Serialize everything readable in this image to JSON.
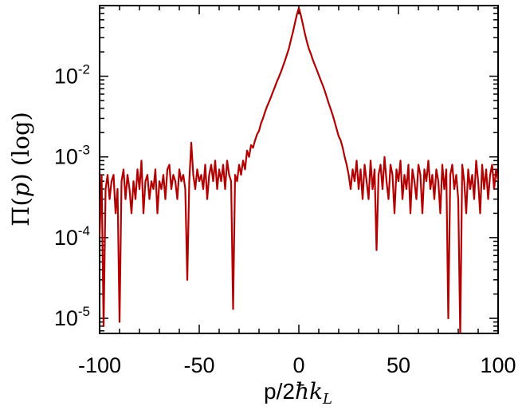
{
  "chart_data": {
    "type": "line",
    "title": "",
    "xlabel": "p/2ħk_L",
    "xlabel_parts": {
      "prefix": "p/2",
      "hbar": "ħ",
      "k": "k",
      "sub": "L"
    },
    "ylabel": "Π(p) (log)",
    "ylabel_parts": {
      "pi": "Π",
      "open": "(",
      "p": "p",
      "close": ")",
      "log": "(log)"
    },
    "xlim": [
      -100,
      100
    ],
    "ylim": [
      6.5e-06,
      0.075
    ],
    "yscale": "log",
    "grid": false,
    "legend": "none",
    "line_color": "#b30000",
    "x_ticks": [
      {
        "value": -100,
        "label": "-100"
      },
      {
        "value": -50,
        "label": "-50"
      },
      {
        "value": 0,
        "label": "0"
      },
      {
        "value": 50,
        "label": "50"
      },
      {
        "value": 100,
        "label": "100"
      }
    ],
    "y_ticks": [
      {
        "value": 0.01,
        "base": "10",
        "exp": "-2"
      },
      {
        "value": 0.001,
        "base": "10",
        "exp": "-3"
      },
      {
        "value": 0.0001,
        "base": "10",
        "exp": "-4"
      },
      {
        "value": 1e-05,
        "base": "10",
        "exp": "-5"
      }
    ],
    "series": [
      {
        "x": [
          -100,
          -99,
          -98,
          -97,
          -96,
          -95,
          -94,
          -93,
          -92,
          -91,
          -90,
          -89,
          -88,
          -87,
          -86,
          -85,
          -84,
          -83,
          -82,
          -81,
          -80,
          -79,
          -78,
          -77,
          -76,
          -75,
          -74,
          -73,
          -72,
          -71,
          -70,
          -69,
          -68,
          -67,
          -66,
          -65,
          -64,
          -63,
          -62,
          -61,
          -60,
          -59,
          -58,
          -57,
          -56,
          -55,
          -54,
          -53,
          -52,
          -51,
          -50,
          -49,
          -48,
          -47,
          -46,
          -45,
          -44,
          -43,
          -42,
          -41,
          -40,
          -39,
          -38,
          -37,
          -36,
          -35,
          -34,
          -33,
          -32,
          -31,
          -30,
          -29,
          -28,
          -27,
          -26,
          -25,
          -24,
          -23,
          -22,
          -21,
          -20,
          -19,
          -18,
          -17,
          -16,
          -15,
          -14,
          -13,
          -12,
          -11,
          -10,
          -9,
          -8,
          -7,
          -6,
          -5,
          -4,
          -3,
          -2,
          -1,
          0,
          1,
          2,
          3,
          4,
          5,
          6,
          7,
          8,
          9,
          10,
          11,
          12,
          13,
          14,
          15,
          16,
          17,
          18,
          19,
          20,
          21,
          22,
          23,
          24,
          25,
          26,
          27,
          28,
          29,
          30,
          31,
          32,
          33,
          34,
          35,
          36,
          37,
          38,
          39,
          40,
          41,
          42,
          43,
          44,
          45,
          46,
          47,
          48,
          49,
          50,
          51,
          52,
          53,
          54,
          55,
          56,
          57,
          58,
          59,
          60,
          61,
          62,
          63,
          64,
          65,
          66,
          67,
          68,
          69,
          70,
          71,
          72,
          73,
          74,
          75,
          76,
          77,
          78,
          79,
          80,
          81,
          82,
          83,
          84,
          85,
          86,
          87,
          88,
          89,
          90,
          91,
          92,
          93,
          94,
          95,
          96,
          97,
          98,
          99,
          100
        ],
        "y": [
          0.0001,
          0.0006,
          8e-06,
          0.0004,
          0.0006,
          0.0003,
          0.0005,
          0.0006,
          0.0002,
          0.0004,
          9e-06,
          0.0005,
          0.0007,
          0.0003,
          0.0006,
          0.0004,
          0.0002,
          0.0005,
          0.0003,
          0.0007,
          0.0004,
          0.0009,
          0.0002,
          0.0005,
          0.0006,
          0.0003,
          0.0005,
          0.0004,
          0.0007,
          0.0002,
          0.0005,
          0.0004,
          0.0006,
          0.0003,
          0.0007,
          0.0008,
          0.0004,
          0.0006,
          0.0005,
          0.0003,
          0.0007,
          0.0005,
          0.0006,
          0.0004,
          3e-05,
          0.0005,
          0.0015,
          0.0006,
          0.0004,
          0.0007,
          0.0005,
          0.0006,
          0.0004,
          0.0008,
          0.0003,
          0.0006,
          0.0008,
          0.0005,
          0.0009,
          0.0004,
          0.0007,
          0.0005,
          0.0008,
          0.0004,
          0.0009,
          0.0006,
          0.0005,
          1.3e-05,
          0.0006,
          0.0005,
          0.0008,
          0.0006,
          0.0009,
          0.0007,
          0.0012,
          0.001,
          0.0014,
          0.0013,
          0.0016,
          0.0019,
          0.0021,
          0.0026,
          0.003,
          0.0036,
          0.0042,
          0.0048,
          0.0055,
          0.0064,
          0.0074,
          0.0086,
          0.0098,
          0.0113,
          0.0132,
          0.0155,
          0.0185,
          0.022,
          0.028,
          0.035,
          0.045,
          0.058,
          0.07,
          0.057,
          0.044,
          0.034,
          0.027,
          0.022,
          0.019,
          0.016,
          0.0138,
          0.012,
          0.0103,
          0.0089,
          0.0077,
          0.0066,
          0.0055,
          0.0046,
          0.0039,
          0.0033,
          0.0027,
          0.0022,
          0.0018,
          0.0016,
          0.0013,
          0.001,
          0.0008,
          0.0006,
          0.0004,
          0.0007,
          0.0005,
          0.0009,
          0.0004,
          0.0007,
          0.0003,
          0.0008,
          0.0005,
          0.0003,
          0.0009,
          0.0004,
          0.0007,
          7e-05,
          0.0006,
          0.0008,
          0.0004,
          0.001,
          0.0005,
          0.0003,
          0.0008,
          0.0006,
          0.0002,
          0.0007,
          0.0005,
          0.0009,
          0.0003,
          0.0006,
          0.0004,
          0.0008,
          0.0002,
          0.0007,
          0.0005,
          0.0003,
          0.0008,
          0.0006,
          0.0002,
          0.0007,
          0.0005,
          0.0009,
          0.0004,
          0.0006,
          0.0003,
          0.0007,
          0.0005,
          0.0002,
          0.0008,
          0.0004,
          0.0007,
          1e-05,
          0.0006,
          0.0008,
          0.0004,
          0.0006,
          0.0003,
          6e-06,
          0.0008,
          0.0005,
          0.0002,
          0.0007,
          0.0004,
          0.0006,
          0.0003,
          0.0009,
          0.0005,
          0.0002,
          0.0008,
          0.0004,
          0.0007,
          0.0003,
          0.0006,
          0.0008,
          0.0004,
          0.0007,
          0.0005
        ]
      }
    ]
  }
}
